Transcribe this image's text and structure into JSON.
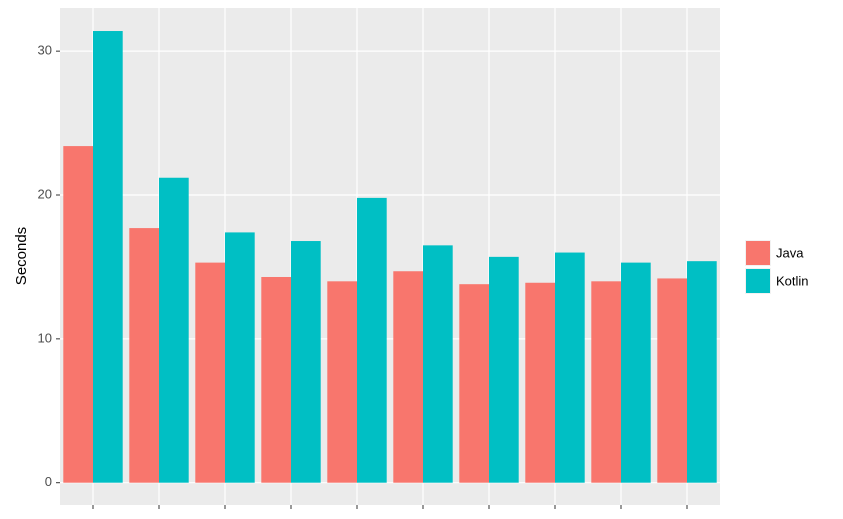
{
  "chart_data": {
    "type": "bar",
    "y_label": "Seconds",
    "categories": [
      null,
      null,
      null,
      null,
      null,
      null,
      null,
      null,
      null,
      null
    ],
    "series": [
      {
        "name": "Java",
        "color": "#f8766d",
        "values": [
          23.4,
          17.7,
          15.3,
          14.3,
          14.0,
          14.7,
          13.8,
          13.9,
          14.0,
          14.2
        ]
      },
      {
        "name": "Kotlin",
        "color": "#00bfc4",
        "values": [
          31.4,
          21.2,
          17.4,
          16.8,
          19.8,
          16.5,
          15.7,
          16.0,
          15.3,
          15.4
        ]
      }
    ],
    "ylim": [
      -1.55,
      33
    ],
    "yticks": [
      0,
      10,
      20,
      30
    ],
    "grid": true,
    "legend": "right"
  }
}
